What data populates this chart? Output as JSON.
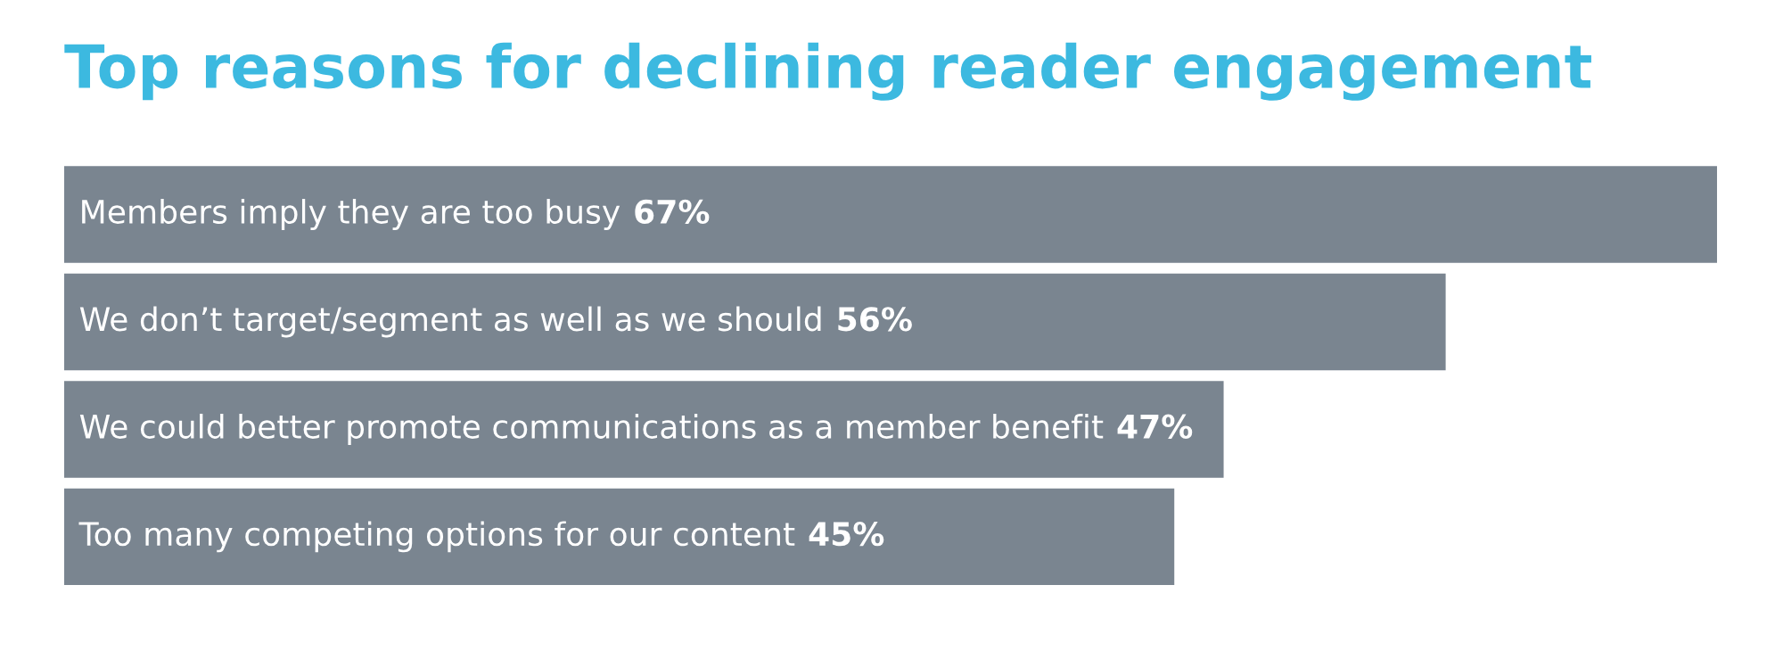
{
  "chart_data": {
    "type": "bar",
    "orientation": "horizontal",
    "title": "Top reasons for declining reader engagement",
    "categories": [
      "Members imply they are too busy",
      "We don’t target/segment as well as we should",
      "We could better promote communications as a member benefit",
      "Too many competing options for our content"
    ],
    "values": [
      67,
      56,
      47,
      45
    ],
    "value_labels": [
      "67%",
      "56%",
      "47%",
      "45%"
    ],
    "color": "#7a8590"
  }
}
